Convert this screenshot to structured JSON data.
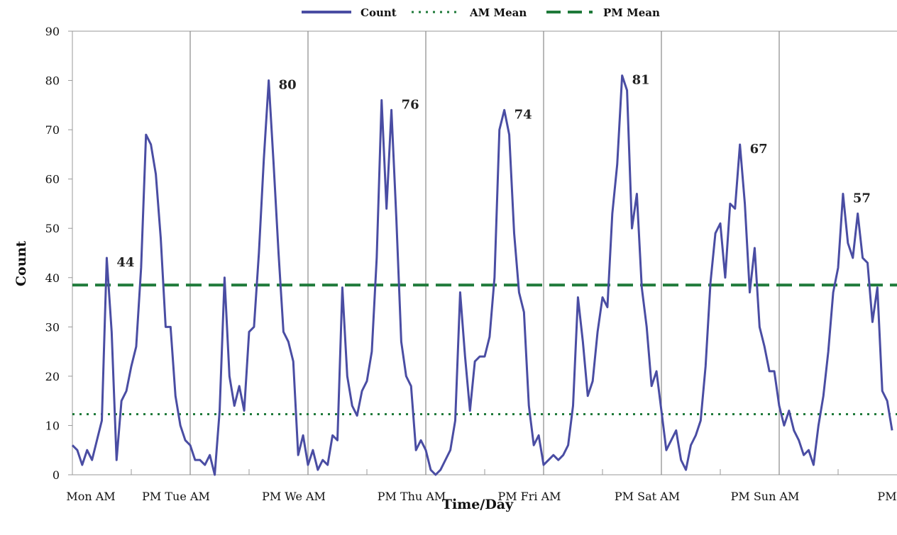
{
  "colors": {
    "count": "#4a4da3",
    "am_mean": "#1f7a3a",
    "pm_mean": "#1f7a3a",
    "axis": "#999999",
    "separator": "#888888",
    "text": "#111111"
  },
  "legend": {
    "count": "Count",
    "am_mean": "AM Mean",
    "pm_mean": "PM Mean"
  },
  "chart_data": {
    "type": "line",
    "xlabel": "Time/Day",
    "ylabel": "Count",
    "ylim": [
      0,
      90
    ],
    "yticks": [
      0,
      10,
      20,
      30,
      40,
      50,
      60,
      70,
      80,
      90
    ],
    "grid": false,
    "legend_position": "top",
    "x_tick_labels": [
      "Mon AM",
      "PM Tue AM",
      "PM We AM",
      "PM Thu AM",
      "PM Fri AM",
      "PM Sat AM",
      "PM Sun AM",
      "PM"
    ],
    "x_range": [
      0,
      168
    ],
    "day_boundaries": [
      24,
      48,
      72,
      96,
      120,
      144
    ],
    "reference_lines": [
      {
        "name": "AM Mean",
        "value": 12.3,
        "style": "dotted"
      },
      {
        "name": "PM Mean",
        "value": 38.5,
        "style": "dashed"
      }
    ],
    "series": [
      {
        "name": "Count",
        "values": [
          6,
          5,
          2,
          5,
          3,
          7,
          11,
          44,
          29,
          3,
          15,
          17,
          22,
          26,
          42,
          69,
          67,
          61,
          48,
          30,
          30,
          16,
          10,
          7,
          6,
          3,
          3,
          2,
          4,
          0,
          13,
          40,
          20,
          14,
          18,
          13,
          29,
          30,
          45,
          64,
          80,
          63,
          45,
          29,
          27,
          23,
          4,
          8,
          2,
          5,
          1,
          3,
          2,
          8,
          7,
          38,
          20,
          14,
          12,
          17,
          19,
          25,
          44,
          76,
          54,
          74,
          52,
          27,
          20,
          18,
          5,
          7,
          5,
          1,
          0,
          1,
          3,
          5,
          11,
          37,
          24,
          13,
          23,
          24,
          24,
          28,
          40,
          70,
          74,
          69,
          49,
          37,
          33,
          14,
          6,
          8,
          2,
          3,
          4,
          3,
          4,
          6,
          14,
          36,
          27,
          16,
          19,
          29,
          36,
          34,
          53,
          63,
          81,
          78,
          50,
          57,
          38,
          30,
          18,
          21,
          13,
          5,
          7,
          9,
          3,
          1,
          6,
          8,
          11,
          22,
          39,
          49,
          51,
          40,
          55,
          54,
          67,
          55,
          37,
          46,
          30,
          26,
          21,
          21,
          14,
          10,
          13,
          9,
          7,
          4,
          5,
          2,
          10,
          16,
          25,
          37,
          42,
          57,
          47,
          44,
          53,
          44,
          43,
          31,
          38,
          17,
          15,
          9
        ]
      }
    ],
    "annotations": [
      {
        "text": "44",
        "x": 7,
        "y": 44
      },
      {
        "text": "80",
        "x": 40,
        "y": 80
      },
      {
        "text": "76",
        "x": 65,
        "y": 76
      },
      {
        "text": "74",
        "x": 88,
        "y": 74
      },
      {
        "text": "81",
        "x": 112,
        "y": 81
      },
      {
        "text": "67",
        "x": 136,
        "y": 67
      },
      {
        "text": "57",
        "x": 157,
        "y": 57
      }
    ]
  }
}
